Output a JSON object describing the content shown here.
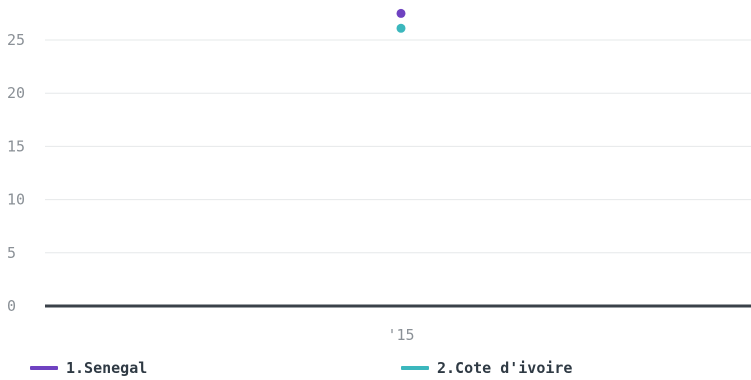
{
  "chart_data": {
    "type": "scatter",
    "categories": [
      "'15"
    ],
    "series": [
      {
        "name": "1.Senegal",
        "values": [
          27.5
        ],
        "color": "#6f42c1"
      },
      {
        "name": "2.Cote d'ivoire",
        "values": [
          26.1
        ],
        "color": "#3bb7bd"
      }
    ],
    "y_ticks": [
      0,
      5,
      10,
      15,
      20,
      25
    ],
    "ylim": [
      0,
      28
    ],
    "grid": true,
    "legend_position": "bottom"
  },
  "legend": {
    "items": [
      {
        "label": "1.Senegal",
        "color": "#6f42c1"
      },
      {
        "label": "2.Cote d'ivoire",
        "color": "#3bb7bd"
      }
    ]
  }
}
